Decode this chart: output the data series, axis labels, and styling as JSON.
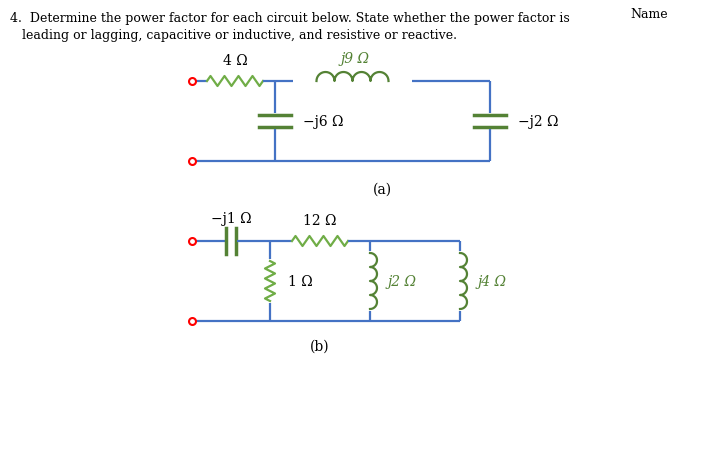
{
  "title_text": "Name",
  "wire_color": "#4472C4",
  "resistor_color": "#70AD47",
  "inductor_color": "#548235",
  "capacitor_color": "#548235",
  "terminal_color": "#FF0000",
  "label_color_black": "#000000",
  "circuit_a": {
    "label": "(a)",
    "resistor_4_label": "4 Ω",
    "inductor_j9_label": "j9 Ω",
    "cap_j6_label": "−j6 Ω",
    "cap_j2_label": "−j2 Ω"
  },
  "circuit_b": {
    "label": "(b)",
    "cap_j1_label": "−j1 Ω",
    "resistor_12_label": "12 Ω",
    "resistor_1_label": "1 Ω",
    "inductor_j2_label": "j2 Ω",
    "inductor_j4_label": "j4 Ω"
  }
}
